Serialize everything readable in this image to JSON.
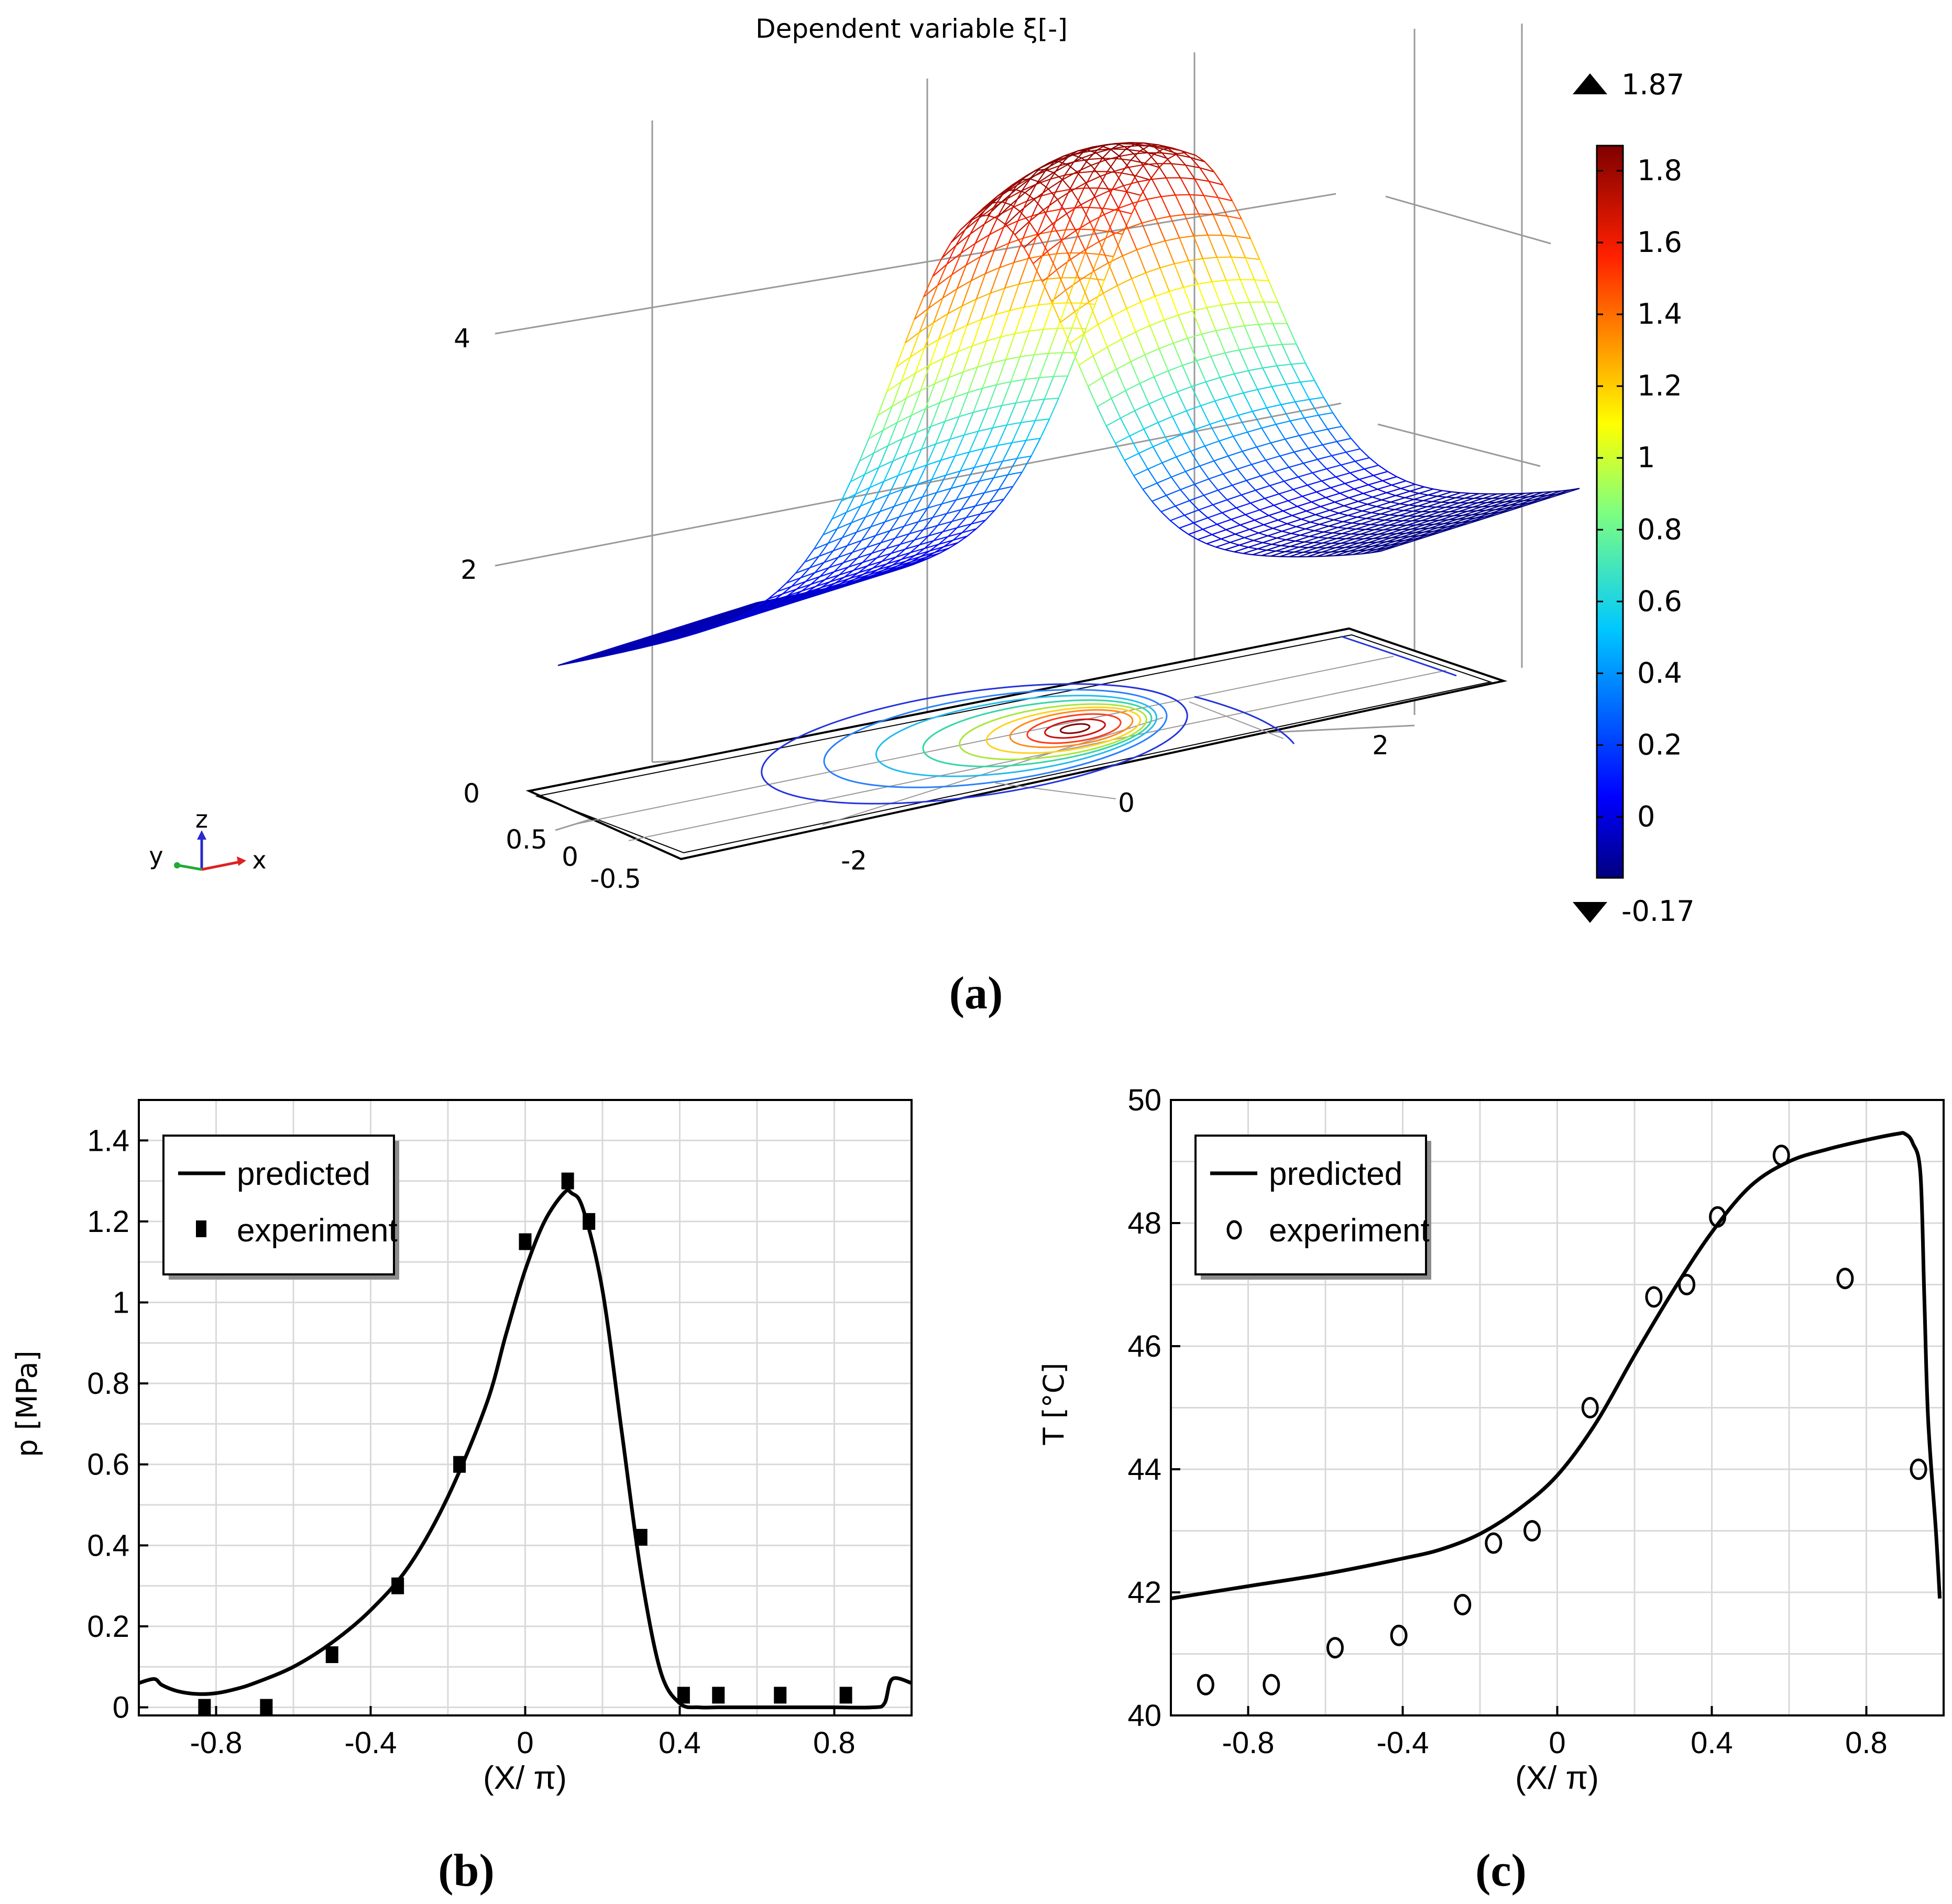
{
  "panel_labels": {
    "a": "(a)",
    "b": "(b)",
    "c": "(c)"
  },
  "colors": {
    "line": "#000000",
    "grid": "#d9d9d9",
    "mesh_low": "#1f2bd6",
    "colorbar_top": "#7f0000",
    "colorbar_bottom": "#00007f"
  },
  "chart_data": [
    {
      "id": "a",
      "type": "surface",
      "title": "Dependent variable ξ[-]",
      "z_ticks": [
        "0",
        "2",
        "4"
      ],
      "x_ticks": [
        "-2",
        "0",
        "2"
      ],
      "y_ticks": [
        "0.5",
        "0",
        "-0.5"
      ],
      "axis_triad": {
        "x": "x",
        "y": "y",
        "z": "z"
      },
      "colorbar": {
        "max_label": "1.87",
        "min_label": "-0.17",
        "min": -0.17,
        "max": 1.87,
        "ticks": [
          "1.8",
          "1.6",
          "1.4",
          "1.2",
          "1",
          "0.8",
          "0.6",
          "0.4",
          "0.2",
          "0"
        ],
        "tick_values": [
          1.8,
          1.6,
          1.4,
          1.2,
          1.0,
          0.8,
          0.6,
          0.4,
          0.2,
          0.0
        ]
      },
      "peak_value": 1.87,
      "peak_x": 0.1
    },
    {
      "id": "b",
      "type": "line",
      "xlabel": "(X/ π)",
      "ylabel": "p [MPa]",
      "xlim": [
        -1.0,
        1.0
      ],
      "ylim": [
        -0.02,
        1.5
      ],
      "xticks": [
        -0.8,
        -0.4,
        0,
        0.4,
        0.8
      ],
      "xtick_labels": [
        "-0.8",
        "-0.4",
        "0",
        "0.4",
        "0.8"
      ],
      "yticks": [
        0,
        0.2,
        0.4,
        0.6,
        0.8,
        1.0,
        1.2,
        1.4
      ],
      "ytick_labels": [
        "0",
        "0.2",
        "0.4",
        "0.6",
        "0.8",
        "1",
        "1.2",
        "1.4"
      ],
      "legend": {
        "position": "top-left",
        "entries": [
          "predicted",
          "experiment"
        ]
      },
      "series": [
        {
          "name": "predicted",
          "style": "line",
          "x": [
            -1.0,
            -0.96,
            -0.94,
            -0.9,
            -0.85,
            -0.8,
            -0.75,
            -0.7,
            -0.6,
            -0.5,
            -0.4,
            -0.3,
            -0.2,
            -0.1,
            -0.05,
            0,
            0.05,
            0.1,
            0.12,
            0.15,
            0.2,
            0.25,
            0.3,
            0.35,
            0.4,
            0.45,
            0.5,
            0.6,
            0.7,
            0.8,
            0.9,
            0.93,
            0.95,
            1.0
          ],
          "y": [
            0.06,
            0.07,
            0.055,
            0.04,
            0.033,
            0.035,
            0.045,
            0.06,
            0.1,
            0.16,
            0.24,
            0.35,
            0.52,
            0.75,
            0.92,
            1.08,
            1.2,
            1.27,
            1.27,
            1.23,
            1.03,
            0.68,
            0.33,
            0.09,
            0.01,
            0.0,
            0.0,
            0.0,
            0.0,
            0.0,
            0.0,
            0.01,
            0.07,
            0.06
          ]
        },
        {
          "name": "experiment",
          "style": "square",
          "x": [
            -0.83,
            -0.67,
            -0.5,
            -0.33,
            -0.17,
            0.0,
            0.11,
            0.165,
            0.3,
            0.41,
            0.5,
            0.66,
            0.83
          ],
          "y": [
            0.0,
            0.0,
            0.13,
            0.3,
            0.6,
            1.15,
            1.3,
            1.2,
            0.42,
            0.03,
            0.03,
            0.03,
            0.03
          ]
        }
      ]
    },
    {
      "id": "c",
      "type": "line",
      "xlabel": "(X/ π)",
      "ylabel": "T [°C]",
      "xlim": [
        -1.0,
        1.0
      ],
      "ylim": [
        40,
        50
      ],
      "xticks": [
        -0.8,
        -0.4,
        0,
        0.4,
        0.8
      ],
      "xtick_labels": [
        "-0.8",
        "-0.4",
        "0",
        "0.4",
        "0.8"
      ],
      "yticks": [
        40,
        42,
        44,
        46,
        48,
        50
      ],
      "ytick_labels": [
        "40",
        "42",
        "44",
        "46",
        "48",
        "50"
      ],
      "legend": {
        "position": "top-left",
        "entries": [
          "predicted",
          "experiment"
        ]
      },
      "series": [
        {
          "name": "predicted",
          "style": "line",
          "x": [
            -1.0,
            -0.8,
            -0.6,
            -0.4,
            -0.3,
            -0.2,
            -0.1,
            0,
            0.1,
            0.2,
            0.3,
            0.4,
            0.5,
            0.6,
            0.7,
            0.8,
            0.88,
            0.9,
            0.92,
            0.94,
            0.95,
            0.96,
            0.98,
            0.99
          ],
          "y": [
            41.9,
            42.1,
            42.3,
            42.55,
            42.7,
            42.95,
            43.35,
            43.9,
            44.75,
            45.85,
            46.9,
            47.85,
            48.6,
            49.0,
            49.2,
            49.35,
            49.45,
            49.45,
            49.3,
            48.8,
            46.8,
            44.8,
            43.0,
            41.9
          ]
        },
        {
          "name": "experiment",
          "style": "circle",
          "x": [
            -0.91,
            -0.74,
            -0.575,
            -0.41,
            -0.245,
            -0.165,
            -0.065,
            0.085,
            0.25,
            0.335,
            0.415,
            0.58,
            0.745,
            0.935
          ],
          "y": [
            40.5,
            40.5,
            41.1,
            41.3,
            41.8,
            42.8,
            43.0,
            45.0,
            46.8,
            47.0,
            48.1,
            49.1,
            47.1,
            44.0
          ]
        }
      ]
    }
  ]
}
